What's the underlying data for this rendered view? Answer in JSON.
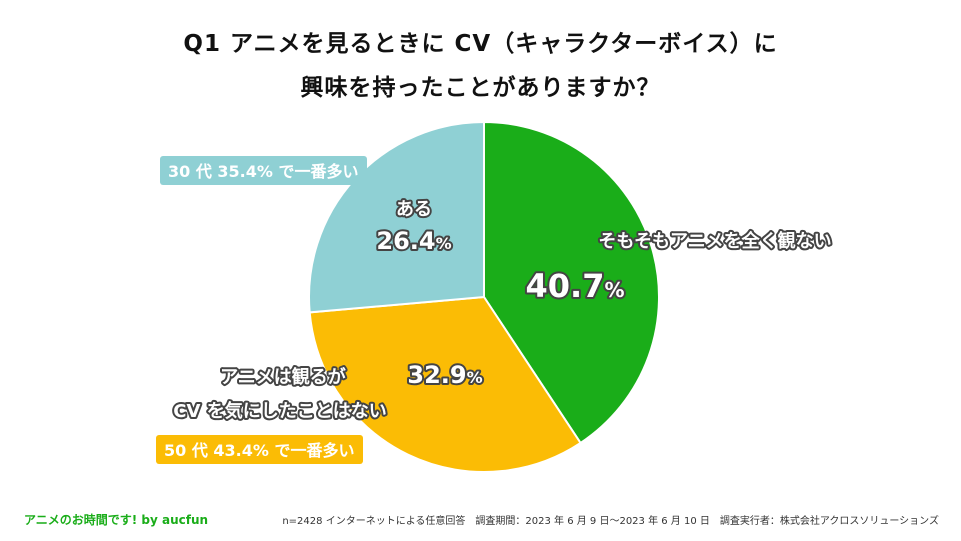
{
  "title": {
    "line1": "Q1  アニメを見るときに CV（キャラクターボイス）に",
    "line2": "興味を持ったことがありますか？"
  },
  "chart_data": {
    "type": "pie",
    "title": "Q1 アニメを見るときに CV（キャラクターボイス）に 興味を持ったことがありますか？",
    "slices": [
      {
        "label": "そもそもアニメを全く観ない",
        "value": 40.7,
        "display": "40.7",
        "unit": "%",
        "color": "#1aad19"
      },
      {
        "label": "アニメは観るがCV を気にしたことはない",
        "label_lines": [
          "アニメは観るが",
          "CV を気にしたことはない"
        ],
        "value": 32.9,
        "display": "32.9",
        "unit": "%",
        "color": "#fbbc05"
      },
      {
        "label": "ある",
        "value": 26.4,
        "display": "26.4",
        "unit": "%",
        "color": "#8fd0d4"
      }
    ],
    "start_angle_deg": 0,
    "direction": "clockwise"
  },
  "callouts": {
    "aru": {
      "text": "30 代 35.4% で一番多い",
      "color": "#8fd0d4"
    },
    "kinishinai": {
      "text": "50 代 43.4% で一番多い",
      "color": "#fbbc05"
    }
  },
  "footer": {
    "brand": "アニメのお時間です! by aucfun",
    "brand_color": "#1aad19",
    "note": "n=2428 インターネットによる任意回答　調査期間：2023 年 6 月 9 日～2023 年 6 月 10 日　調査実行者：株式会社アクロスソリューションズ"
  }
}
